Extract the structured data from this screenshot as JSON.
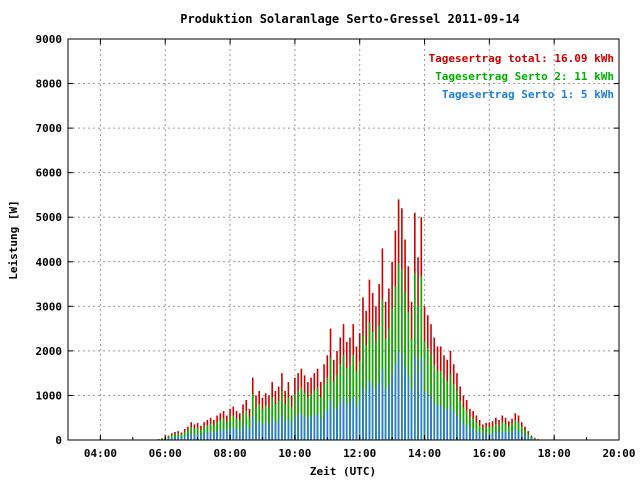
{
  "chart_data": {
    "type": "bar",
    "title": "Produktion Solaranlage Serto-Gressel 2011-09-14",
    "xlabel": "Zeit (UTC)",
    "ylabel": "Leistung [W]",
    "xlim_hours": [
      3.0,
      20.0
    ],
    "ylim": [
      0,
      9000
    ],
    "yticks": [
      0,
      1000,
      2000,
      3000,
      4000,
      5000,
      6000,
      7000,
      8000,
      9000
    ],
    "xticks": [
      {
        "hour": 4,
        "label": "04:00"
      },
      {
        "hour": 6,
        "label": "06:00"
      },
      {
        "hour": 8,
        "label": "08:00"
      },
      {
        "hour": 10,
        "label": "10:00"
      },
      {
        "hour": 12,
        "label": "12:00"
      },
      {
        "hour": 14,
        "label": "14:00"
      },
      {
        "hour": 16,
        "label": "16:00"
      },
      {
        "hour": 18,
        "label": "18:00"
      },
      {
        "hour": 20,
        "label": "20:00"
      }
    ],
    "grid": true,
    "legend_position": "top-right",
    "stacked": true,
    "colors": {
      "total": "#cc0000",
      "serto2": "#00b000",
      "serto1": "#1f7fd6",
      "grid": "#999999"
    },
    "legend": [
      {
        "key": "total",
        "text": "Tagesertrag total: 16.09 kWh"
      },
      {
        "key": "serto2",
        "text": "Tagesertrag Serto 2: 11 kWh"
      },
      {
        "key": "serto1",
        "text": "Tagesertrag Serto 1: 5 kWh"
      }
    ],
    "series": [
      {
        "name": "Tagesertrag total: 16.09 kWh",
        "key": "total"
      },
      {
        "name": "Tagesertrag Serto 2: 11 kWh",
        "key": "serto2"
      },
      {
        "name": "Tagesertrag Serto 1: 5 kWh",
        "key": "serto1"
      }
    ],
    "x": [
      5.8,
      5.9,
      6.0,
      6.1,
      6.2,
      6.3,
      6.4,
      6.5,
      6.6,
      6.7,
      6.8,
      6.9,
      7.0,
      7.1,
      7.2,
      7.3,
      7.4,
      7.5,
      7.6,
      7.7,
      7.8,
      7.9,
      8.0,
      8.1,
      8.2,
      8.3,
      8.4,
      8.5,
      8.6,
      8.7,
      8.8,
      8.9,
      9.0,
      9.1,
      9.2,
      9.3,
      9.4,
      9.5,
      9.6,
      9.7,
      9.8,
      9.9,
      10.0,
      10.1,
      10.2,
      10.3,
      10.4,
      10.5,
      10.6,
      10.7,
      10.8,
      10.9,
      11.0,
      11.1,
      11.2,
      11.3,
      11.4,
      11.5,
      11.6,
      11.7,
      11.8,
      11.9,
      12.0,
      12.1,
      12.2,
      12.3,
      12.4,
      12.5,
      12.6,
      12.7,
      12.8,
      12.9,
      13.0,
      13.1,
      13.2,
      13.3,
      13.4,
      13.5,
      13.6,
      13.7,
      13.8,
      13.9,
      14.0,
      14.1,
      14.2,
      14.3,
      14.4,
      14.5,
      14.6,
      14.7,
      14.8,
      14.9,
      15.0,
      15.1,
      15.2,
      15.3,
      15.4,
      15.5,
      15.6,
      15.7,
      15.8,
      15.9,
      16.0,
      16.1,
      16.2,
      16.3,
      16.4,
      16.5,
      16.6,
      16.7,
      16.8,
      16.9,
      17.0,
      17.1,
      17.2,
      17.3,
      17.4,
      17.5
    ],
    "total": [
      20,
      40,
      60,
      100,
      150,
      180,
      200,
      170,
      250,
      300,
      400,
      350,
      380,
      320,
      400,
      450,
      500,
      450,
      550,
      600,
      650,
      550,
      700,
      750,
      650,
      600,
      800,
      900,
      700,
      1400,
      1000,
      1100,
      950,
      1050,
      1000,
      1300,
      1100,
      1200,
      1500,
      1100,
      1300,
      1000,
      1400,
      1500,
      1600,
      1450,
      1300,
      1400,
      1500,
      1600,
      1300,
      1700,
      1900,
      2500,
      1800,
      2000,
      2300,
      2600,
      2200,
      2300,
      2600,
      2100,
      2400,
      3200,
      2900,
      3600,
      3300,
      3000,
      3500,
      4300,
      3100,
      3400,
      4000,
      4700,
      5400,
      5200,
      4500,
      3900,
      3100,
      5100,
      4100,
      5000,
      3000,
      2800,
      2600,
      2300,
      2100,
      2100,
      1900,
      1800,
      2000,
      1700,
      1500,
      1200,
      1000,
      900,
      700,
      650,
      550,
      450,
      350,
      380,
      400,
      420,
      500,
      450,
      550,
      500,
      420,
      480,
      600,
      550,
      400,
      300,
      200,
      100,
      50,
      20
    ],
    "serto2": [
      15,
      30,
      45,
      75,
      110,
      130,
      150,
      125,
      185,
      220,
      295,
      260,
      280,
      235,
      295,
      330,
      370,
      330,
      405,
      440,
      480,
      405,
      515,
      550,
      480,
      440,
      590,
      660,
      515,
      1030,
      735,
      810,
      700,
      770,
      735,
      955,
      810,
      880,
      1100,
      810,
      955,
      735,
      1030,
      1100,
      1175,
      1065,
      955,
      1030,
      1100,
      1175,
      955,
      1250,
      1395,
      1835,
      1320,
      1470,
      1690,
      1910,
      1615,
      1690,
      1910,
      1545,
      1765,
      2350,
      2130,
      2645,
      2425,
      2205,
      2570,
      3160,
      2280,
      2500,
      2940,
      3450,
      3970,
      3820,
      3305,
      2865,
      2280,
      3745,
      3010,
      3675,
      2205,
      2060,
      1910,
      1690,
      1545,
      1545,
      1395,
      1320,
      1470,
      1250,
      1100,
      880,
      735,
      660,
      515,
      480,
      405,
      330,
      255,
      280,
      295,
      310,
      365,
      330,
      405,
      365,
      310,
      355,
      440,
      405,
      295,
      220,
      145,
      75,
      35,
      15
    ],
    "serto1": [
      8,
      15,
      22,
      38,
      55,
      65,
      75,
      62,
      92,
      110,
      147,
      130,
      140,
      117,
      147,
      165,
      185,
      165,
      202,
      220,
      240,
      202,
      257,
      275,
      240,
      220,
      295,
      330,
      257,
      515,
      367,
      405,
      350,
      385,
      367,
      477,
      405,
      440,
      550,
      405,
      477,
      367,
      515,
      550,
      587,
      532,
      477,
      515,
      550,
      587,
      477,
      625,
      697,
      917,
      660,
      735,
      845,
      955,
      807,
      845,
      955,
      772,
      882,
      1175,
      1065,
      1322,
      1212,
      1102,
      1285,
      1580,
      1140,
      1250,
      1470,
      1725,
      1985,
      1910,
      1652,
      1432,
      1140,
      1872,
      1505,
      1837,
      1102,
      1030,
      955,
      845,
      772,
      772,
      697,
      660,
      735,
      625,
      550,
      440,
      367,
      330,
      257,
      240,
      202,
      165,
      127,
      140,
      147,
      155,
      182,
      165,
      202,
      182,
      155,
      177,
      220,
      202,
      147,
      110,
      72,
      37,
      18,
      8
    ]
  }
}
